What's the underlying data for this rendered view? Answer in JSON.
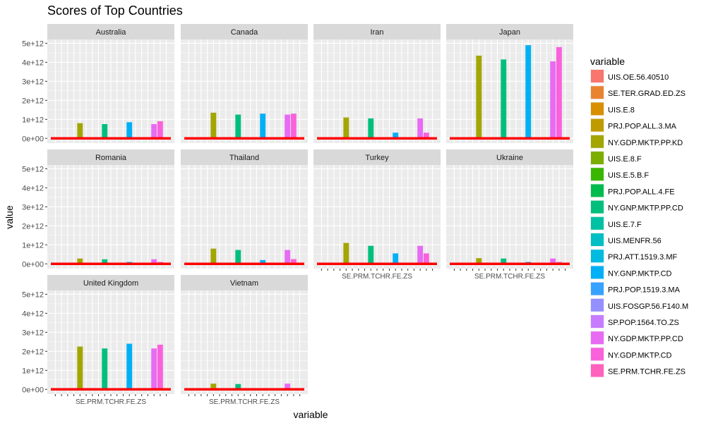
{
  "chart_data": {
    "type": "bar",
    "title": "Scores of Top Countries",
    "xlabel": "variable",
    "ylabel": "value",
    "ylim": [
      0,
      5200000000000.0
    ],
    "y_ticks": [
      {
        "value": 0,
        "label": "0e+00"
      },
      {
        "value": 1000000000000.0,
        "label": "1e+12"
      },
      {
        "value": 2000000000000.0,
        "label": "2e+12"
      },
      {
        "value": 3000000000000.0,
        "label": "3e+12"
      },
      {
        "value": 4000000000000.0,
        "label": "4e+12"
      },
      {
        "value": 5000000000000.0,
        "label": "5e+12"
      }
    ],
    "legend": {
      "title": "variable",
      "position": "right"
    },
    "grid": true,
    "variables": [
      {
        "name": "UIS.OE.56.40510",
        "color": "#F8766D"
      },
      {
        "name": "SE.TER.GRAD.ED.ZS",
        "color": "#EA8331"
      },
      {
        "name": "UIS.E.8",
        "color": "#D89000"
      },
      {
        "name": "PRJ.POP.ALL.3.MA",
        "color": "#C09B00"
      },
      {
        "name": "NY.GDP.MKTP.PP.KD",
        "color": "#A3A500"
      },
      {
        "name": "UIS.E.8.F",
        "color": "#7CAE00"
      },
      {
        "name": "UIS.E.5.B.F",
        "color": "#39B600"
      },
      {
        "name": "PRJ.POP.ALL.4.FE",
        "color": "#00BB4E"
      },
      {
        "name": "NY.GNP.MKTP.PP.CD",
        "color": "#00BF7D"
      },
      {
        "name": "UIS.E.7.F",
        "color": "#00C1A3"
      },
      {
        "name": "UIS.MENFR.56",
        "color": "#00BFC4"
      },
      {
        "name": "PRJ.ATT.1519.3.MF",
        "color": "#00BAE0"
      },
      {
        "name": "NY.GNP.MKTP.CD",
        "color": "#00B0F6"
      },
      {
        "name": "PRJ.POP.1519.3.MA",
        "color": "#35A2FF"
      },
      {
        "name": "UIS.FOSGP.56.F140.M",
        "color": "#9590FF"
      },
      {
        "name": "SP.POP.1564.TO.ZS",
        "color": "#C77CFF"
      },
      {
        "name": "NY.GDP.MKTP.PP.CD",
        "color": "#E76BF3"
      },
      {
        "name": "NY.GDP.MKTP.CD",
        "color": "#FA62DB"
      },
      {
        "name": "SE.PRM.TCHR.FE.ZS",
        "color": "#FF62BC"
      }
    ],
    "panels": [
      {
        "name": "Australia",
        "values": [
          0,
          0,
          0,
          0,
          800000000000.0,
          0,
          0,
          0,
          750000000000.0,
          0,
          0,
          0,
          850000000000.0,
          0,
          0,
          0,
          750000000000.0,
          900000000000.0,
          0
        ]
      },
      {
        "name": "Canada",
        "values": [
          0,
          0,
          0,
          0,
          1350000000000.0,
          0,
          0,
          0,
          1250000000000.0,
          0,
          0,
          0,
          1300000000000.0,
          0,
          0,
          0,
          1250000000000.0,
          1300000000000.0,
          0
        ]
      },
      {
        "name": "Iran",
        "values": [
          0,
          0,
          0,
          0,
          1100000000000.0,
          0,
          0,
          0,
          1050000000000.0,
          0,
          0,
          0,
          300000000000.0,
          0,
          0,
          0,
          1050000000000.0,
          300000000000.0,
          0
        ]
      },
      {
        "name": "Japan",
        "values": [
          0,
          0,
          0,
          0,
          4350000000000.0,
          0,
          0,
          0,
          4150000000000.0,
          0,
          0,
          0,
          4900000000000.0,
          0,
          0,
          0,
          4050000000000.0,
          4800000000000.0,
          0
        ]
      },
      {
        "name": "Romania",
        "values": [
          0,
          0,
          0,
          0,
          280000000000.0,
          0,
          0,
          0,
          240000000000.0,
          0,
          0,
          0,
          100000000000.0,
          0,
          0,
          0,
          240000000000.0,
          100000000000.0,
          0
        ]
      },
      {
        "name": "Thailand",
        "values": [
          0,
          0,
          0,
          0,
          800000000000.0,
          0,
          0,
          0,
          730000000000.0,
          0,
          0,
          0,
          200000000000.0,
          0,
          0,
          0,
          730000000000.0,
          250000000000.0,
          0
        ]
      },
      {
        "name": "Turkey",
        "values": [
          0,
          0,
          0,
          0,
          1100000000000.0,
          0,
          0,
          0,
          950000000000.0,
          0,
          0,
          0,
          550000000000.0,
          0,
          0,
          0,
          950000000000.0,
          550000000000.0,
          0
        ]
      },
      {
        "name": "Ukraine",
        "values": [
          0,
          0,
          0,
          0,
          300000000000.0,
          0,
          0,
          0,
          280000000000.0,
          0,
          0,
          0,
          100000000000.0,
          0,
          0,
          0,
          280000000000.0,
          100000000000.0,
          0
        ]
      },
      {
        "name": "United Kingdom",
        "values": [
          0,
          0,
          0,
          0,
          2250000000000.0,
          0,
          0,
          0,
          2150000000000.0,
          0,
          0,
          0,
          2400000000000.0,
          0,
          0,
          0,
          2150000000000.0,
          2350000000000.0,
          0
        ]
      },
      {
        "name": "Vietnam",
        "values": [
          0,
          0,
          0,
          0,
          300000000000.0,
          0,
          0,
          0,
          280000000000.0,
          0,
          0,
          0,
          0,
          0,
          0,
          0,
          300000000000.0,
          0,
          0
        ]
      }
    ],
    "x_tick_labels": [
      "SE.PRM.TCHR.FE.ZS",
      "SE.TER.GRAD.ED.ZS"
    ]
  }
}
